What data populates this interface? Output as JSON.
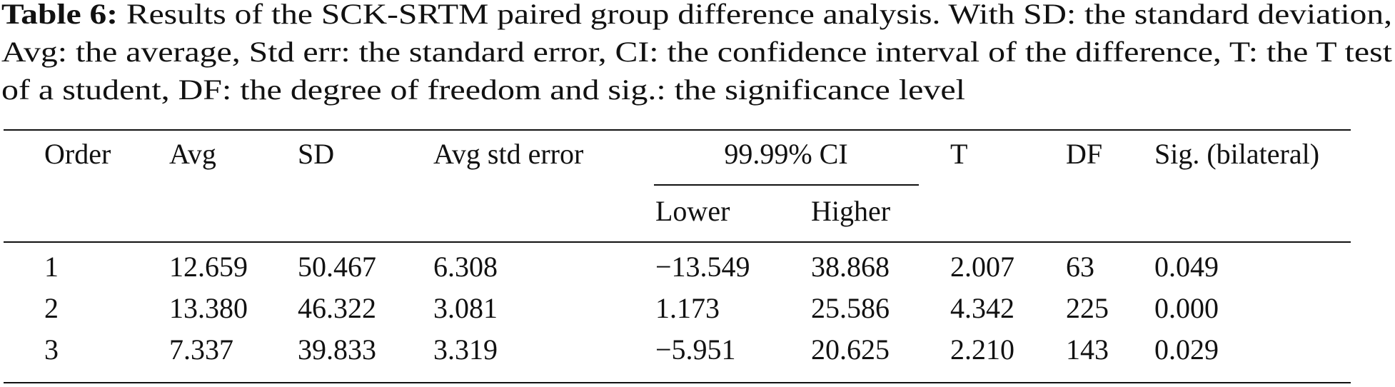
{
  "caption": {
    "label": "Table 6:",
    "lines": [
      "Results of the SCK-SRTM paired group difference analysis. With SD: the standard deviation,",
      "Avg: the average, Std err: the standard error, CI: the confidence interval of the difference, T: the T test",
      "of a student, DF: the degree of freedom and sig.: the significance level"
    ]
  },
  "table": {
    "header": [
      "Order",
      "Avg",
      "SD",
      "Avg std error",
      "99.99% CI",
      "T",
      "DF",
      "Sig. (bilateral)"
    ],
    "subheader": [
      "Lower",
      "Higher"
    ],
    "rows": [
      [
        "1",
        "12.659",
        "50.467",
        "6.308",
        "−13.549",
        "38.868",
        "2.007",
        "63",
        "0.049"
      ],
      [
        "2",
        "13.380",
        "46.322",
        "3.081",
        "1.173",
        "25.586",
        "4.342",
        "225",
        "0.000"
      ],
      [
        "3",
        "7.337",
        "39.833",
        "3.319",
        "−5.951",
        "20.625",
        "2.210",
        "143",
        "0.029"
      ]
    ]
  }
}
